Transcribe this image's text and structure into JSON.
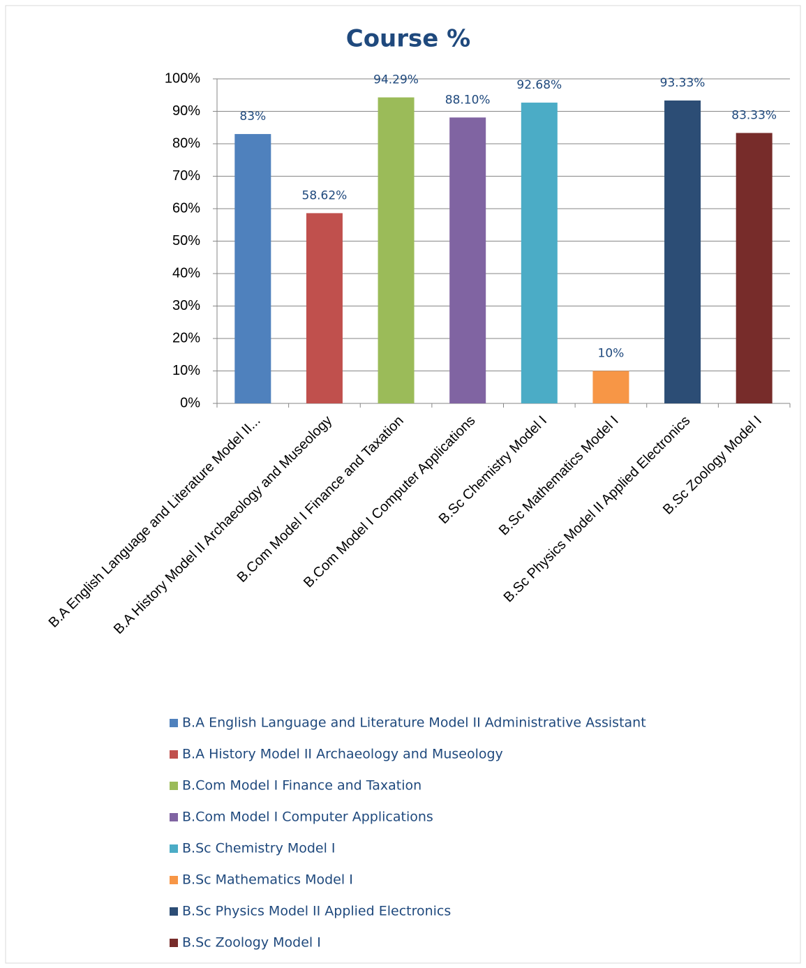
{
  "chart_data": {
    "type": "bar",
    "title": "Course %",
    "categories": [
      "B.A English Language and Literature Model II Administrative Assistant",
      "B.A History Model II Archaeology  and Museology",
      "B.Com Model I Finance and Taxation",
      "B.Com Model I Computer Applications",
      "B.Sc Chemistry Model I",
      "B.Sc Mathematics Model I",
      "B.Sc Physics Model II Applied Electronics",
      "B.Sc Zoology Model I"
    ],
    "tick_labels": [
      "B.A English Language and Literature Model II...",
      "B.A History Model II Archaeology  and Museology",
      "B.Com Model I Finance and Taxation",
      "B.Com Model I Computer Applications",
      "B.Sc Chemistry Model I",
      "B.Sc Mathematics Model I",
      "B.Sc Physics Model II Applied Electronics",
      "B.Sc Zoology Model I"
    ],
    "values": [
      83,
      58.62,
      94.29,
      88.1,
      92.68,
      10,
      93.33,
      83.33
    ],
    "value_labels": [
      "83%",
      "58.62%",
      "94.29%",
      "88.10%",
      "92.68%",
      "10%",
      "93.33%",
      "83.33%"
    ],
    "colors": [
      "#4f81bd",
      "#c0504d",
      "#9bbb59",
      "#8064a2",
      "#4bacc6",
      "#f79646",
      "#2c4d75",
      "#772c2a"
    ],
    "ylim": [
      0,
      100
    ],
    "yticks": [
      {
        "value": 0,
        "label": "0%"
      },
      {
        "value": 10,
        "label": "10%"
      },
      {
        "value": 20,
        "label": "20%"
      },
      {
        "value": 30,
        "label": "30%"
      },
      {
        "value": 40,
        "label": "40%"
      },
      {
        "value": 50,
        "label": "50%"
      },
      {
        "value": 60,
        "label": "60%"
      },
      {
        "value": 70,
        "label": "70%"
      },
      {
        "value": 80,
        "label": "80%"
      },
      {
        "value": 90,
        "label": "90%"
      },
      {
        "value": 100,
        "label": "100%"
      }
    ],
    "grid": true,
    "legend": "bottom"
  }
}
